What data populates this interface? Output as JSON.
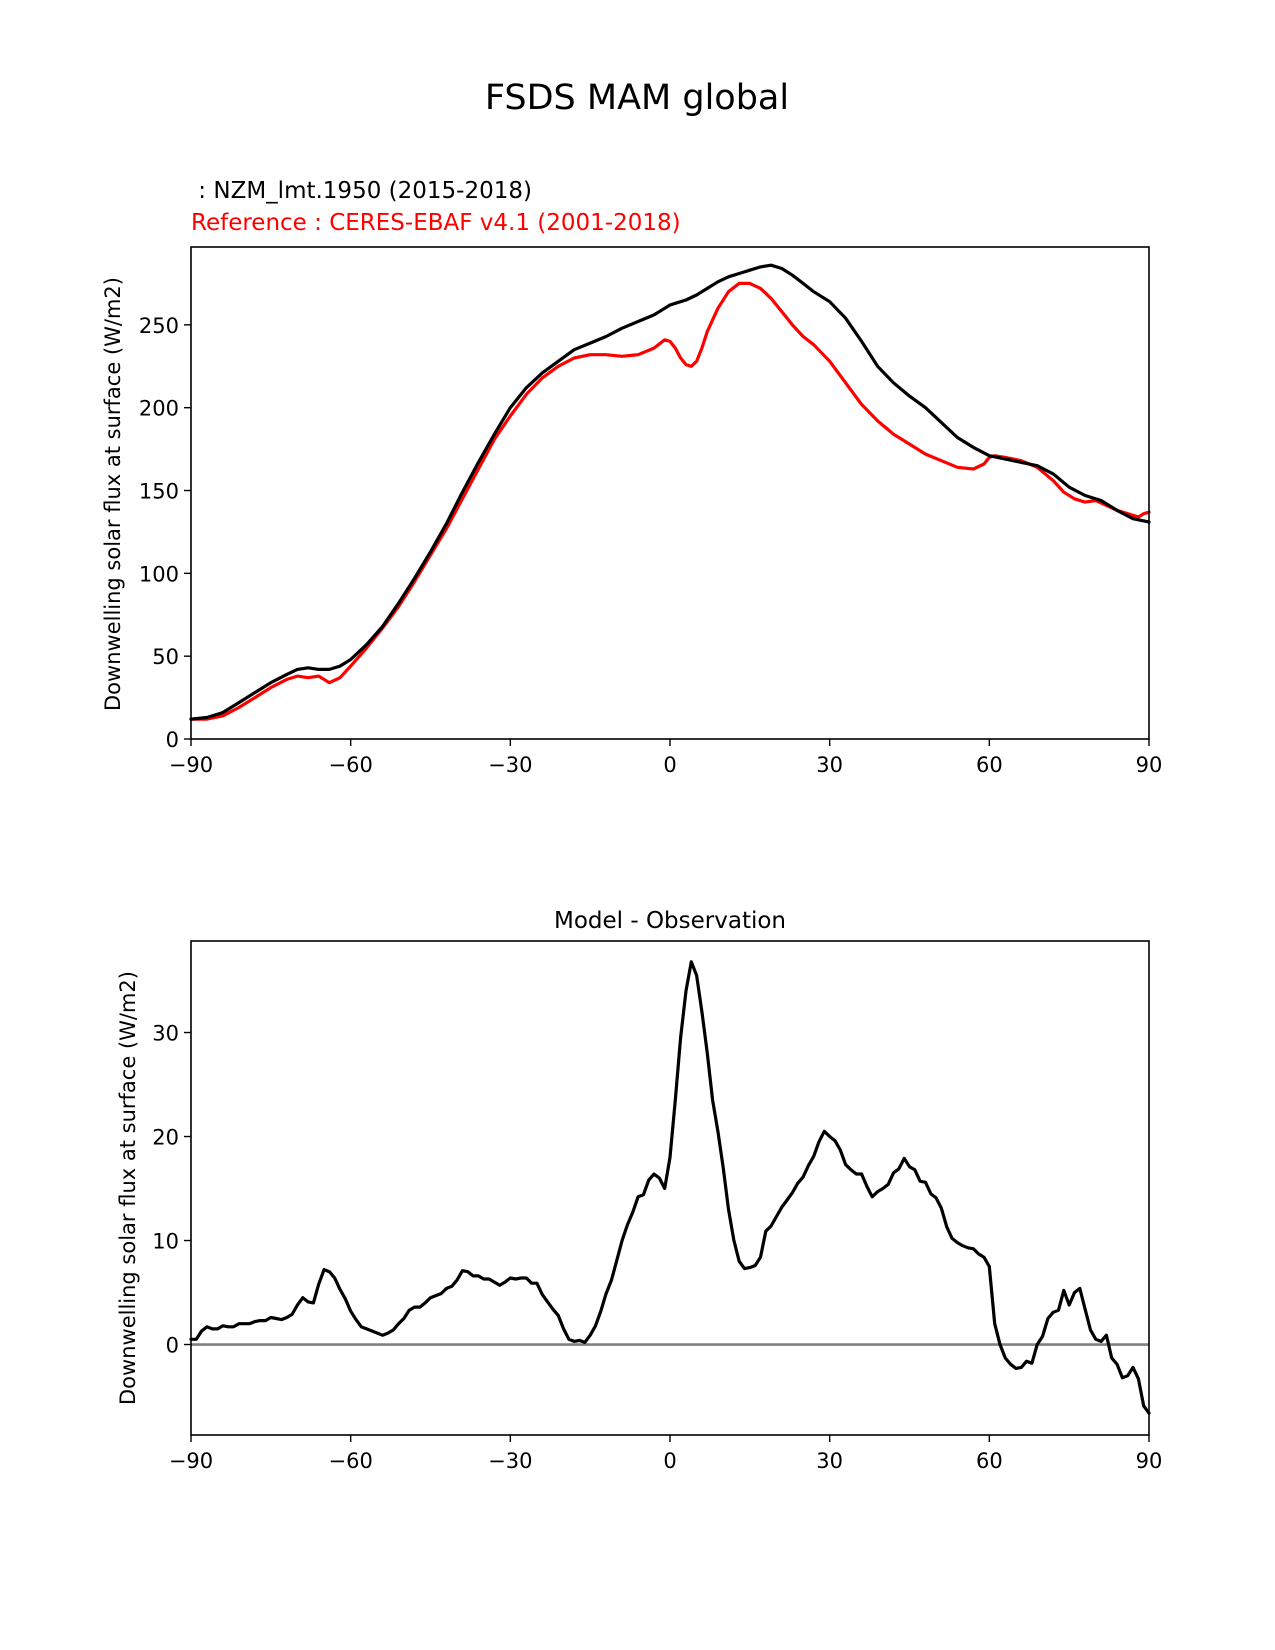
{
  "figure_title": "FSDS MAM global",
  "colors": {
    "model": "#000000",
    "reference": "#ff0000",
    "zero_line": "#808080"
  },
  "chart_data": [
    {
      "type": "line",
      "title": "",
      "legend": {
        "model_label": " : NZM_lmt.1950 (2015-2018)",
        "reference_label": "Reference : CERES-EBAF v4.1 (2001-2018)"
      },
      "xlabel": "",
      "ylabel": "Downwelling solar flux at surface (W/m2)",
      "xlim": [
        -90,
        90
      ],
      "ylim": [
        0,
        297
      ],
      "xticks": [
        -90,
        -60,
        -30,
        0,
        30,
        60,
        90
      ],
      "xtick_labels": [
        "−90",
        "−60",
        "−30",
        "0",
        "30",
        "60",
        "90"
      ],
      "yticks": [
        0,
        50,
        100,
        150,
        200,
        250
      ],
      "ytick_labels": [
        "0",
        "50",
        "100",
        "150",
        "200",
        "250"
      ],
      "series": [
        {
          "name": "model",
          "color": "#000000",
          "x": [
            -90,
            -87,
            -84,
            -81,
            -78,
            -75,
            -72,
            -70,
            -68,
            -66,
            -64,
            -62,
            -60,
            -57,
            -54,
            -51,
            -48,
            -45,
            -42,
            -39,
            -36,
            -33,
            -30,
            -27,
            -24,
            -21,
            -18,
            -15,
            -12,
            -9,
            -6,
            -3,
            -1,
            0,
            1,
            3,
            5,
            7,
            9,
            11,
            13,
            15,
            17,
            19,
            21,
            23,
            25,
            27,
            30,
            33,
            36,
            39,
            42,
            45,
            48,
            51,
            54,
            57,
            60,
            63,
            66,
            69,
            72,
            75,
            78,
            81,
            84,
            87,
            90
          ],
          "values": [
            12,
            13,
            16,
            22,
            28,
            34,
            39,
            42,
            43,
            42,
            42,
            44,
            48,
            57,
            68,
            82,
            97,
            113,
            130,
            149,
            167,
            184,
            200,
            212,
            221,
            228,
            235,
            239,
            243,
            248,
            252,
            256,
            260,
            262,
            263,
            265,
            268,
            272,
            276,
            279,
            281,
            283,
            285,
            286,
            284,
            280,
            275,
            270,
            264,
            254,
            240,
            225,
            215,
            207,
            200,
            191,
            182,
            176,
            171,
            169,
            167,
            165,
            160,
            152,
            147,
            144,
            138,
            133,
            131
          ]
        },
        {
          "name": "reference",
          "color": "#ff0000",
          "x": [
            -90,
            -87,
            -84,
            -81,
            -78,
            -75,
            -72,
            -70,
            -68,
            -66,
            -64,
            -62,
            -60,
            -57,
            -54,
            -51,
            -48,
            -45,
            -42,
            -39,
            -36,
            -33,
            -30,
            -27,
            -24,
            -21,
            -18,
            -15,
            -12,
            -9,
            -6,
            -3,
            -1,
            0,
            1,
            2,
            3,
            4,
            5,
            6,
            7,
            9,
            11,
            13,
            15,
            17,
            19,
            21,
            23,
            25,
            27,
            30,
            33,
            36,
            39,
            42,
            45,
            48,
            51,
            54,
            57,
            59,
            60,
            61,
            63,
            66,
            69,
            72,
            74,
            76,
            78,
            80,
            82,
            84,
            86,
            88,
            89,
            90
          ],
          "values": [
            12,
            12,
            14,
            19,
            25,
            31,
            36,
            38,
            37,
            38,
            34,
            37,
            44,
            55,
            67,
            80,
            95,
            111,
            127,
            145,
            163,
            181,
            195,
            208,
            218,
            225,
            230,
            232,
            232,
            231,
            232,
            236,
            241,
            240,
            236,
            230,
            226,
            225,
            228,
            236,
            246,
            260,
            270,
            275,
            275,
            272,
            266,
            258,
            250,
            243,
            238,
            228,
            215,
            202,
            192,
            184,
            178,
            172,
            168,
            164,
            163,
            166,
            170,
            171,
            170,
            168,
            164,
            156,
            149,
            145,
            143,
            144,
            141,
            138,
            136,
            134,
            136,
            137
          ]
        }
      ]
    },
    {
      "type": "line",
      "title": "Model - Observation",
      "xlabel": "",
      "ylabel": "Downwelling solar flux at surface (W/m2)",
      "xlim": [
        -90,
        90
      ],
      "ylim": [
        -8.7,
        38.8
      ],
      "xticks": [
        -90,
        -60,
        -30,
        0,
        30,
        60,
        90
      ],
      "xtick_labels": [
        "−90",
        "−60",
        "−30",
        "0",
        "30",
        "60",
        "90"
      ],
      "yticks": [
        0,
        10,
        20,
        30
      ],
      "ytick_labels": [
        "0",
        "10",
        "20",
        "30"
      ],
      "zero_line": 0,
      "series": [
        {
          "name": "difference",
          "color": "#000000",
          "x": [
            -90,
            -89,
            -88,
            -87,
            -86,
            -85,
            -84,
            -83,
            -82,
            -81,
            -80,
            -79,
            -78,
            -77,
            -76,
            -75,
            -74,
            -73,
            -72,
            -71,
            -70,
            -69,
            -68,
            -67,
            -66,
            -65,
            -64,
            -63,
            -62,
            -61,
            -60,
            -59,
            -58,
            -57,
            -56,
            -55,
            -54,
            -53,
            -52,
            -51,
            -50,
            -49,
            -48,
            -47,
            -46,
            -45,
            -44,
            -43,
            -42,
            -41,
            -40,
            -39,
            -38,
            -37,
            -36,
            -35,
            -34,
            -33,
            -32,
            -31,
            -30,
            -29,
            -28,
            -27,
            -26,
            -25,
            -24,
            -23,
            -22,
            -21,
            -20,
            -19,
            -18,
            -17,
            -16,
            -15,
            -14,
            -13,
            -12,
            -11,
            -10,
            -9,
            -8,
            -7,
            -6,
            -5,
            -4,
            -3,
            -2,
            -1,
            0,
            1,
            2,
            3,
            4,
            5,
            6,
            7,
            8,
            9,
            10,
            11,
            12,
            13,
            14,
            15,
            16,
            17,
            18,
            19,
            20,
            21,
            22,
            23,
            24,
            25,
            26,
            27,
            28,
            29,
            30,
            31,
            32,
            33,
            34,
            35,
            36,
            37,
            38,
            39,
            40,
            41,
            42,
            43,
            44,
            45,
            46,
            47,
            48,
            49,
            50,
            51,
            52,
            53,
            54,
            55,
            56,
            57,
            58,
            59,
            60,
            61,
            62,
            63,
            64,
            65,
            66,
            67,
            68,
            69,
            70,
            71,
            72,
            73,
            74,
            75,
            76,
            77,
            78,
            79,
            80,
            81,
            82,
            83,
            84,
            85,
            86,
            87,
            88,
            89,
            90
          ],
          "values": [
            0.5,
            0.5,
            1.3,
            1.7,
            1.5,
            1.5,
            1.8,
            1.7,
            1.7,
            2.0,
            2.0,
            2.0,
            2.2,
            2.3,
            2.3,
            2.6,
            2.5,
            2.4,
            2.6,
            2.9,
            3.8,
            4.5,
            4.1,
            4.0,
            5.8,
            7.2,
            7.0,
            6.4,
            5.3,
            4.4,
            3.2,
            2.4,
            1.7,
            1.5,
            1.3,
            1.1,
            0.9,
            1.1,
            1.4,
            2.0,
            2.5,
            3.3,
            3.6,
            3.6,
            4.0,
            4.5,
            4.7,
            4.9,
            5.4,
            5.6,
            6.2,
            7.1,
            7.0,
            6.6,
            6.6,
            6.3,
            6.3,
            6.0,
            5.7,
            6.0,
            6.4,
            6.3,
            6.4,
            6.4,
            5.9,
            5.9,
            4.8,
            4.1,
            3.4,
            2.8,
            1.5,
            0.5,
            0.3,
            0.4,
            0.2,
            0.9,
            1.8,
            3.2,
            4.9,
            6.2,
            8.1,
            10.0,
            11.5,
            12.7,
            14.2,
            14.4,
            15.8,
            16.4,
            16.0,
            15.0,
            18.0,
            23.5,
            29.5,
            34.0,
            36.8,
            35.5,
            32.0,
            28.0,
            23.5,
            20.5,
            17.0,
            13.0,
            10.0,
            8.0,
            7.3,
            7.4,
            7.6,
            8.4,
            10.9,
            11.4,
            12.3,
            13.2,
            13.9,
            14.6,
            15.5,
            16.1,
            17.2,
            18.1,
            19.5,
            20.5,
            20.0,
            19.6,
            18.7,
            17.3,
            16.8,
            16.4,
            16.4,
            15.2,
            14.2,
            14.7,
            15.0,
            15.4,
            16.5,
            16.9,
            17.9,
            17.1,
            16.8,
            15.7,
            15.6,
            14.5,
            14.1,
            13.1,
            11.3,
            10.2,
            9.8,
            9.5,
            9.3,
            9.2,
            8.7,
            8.4,
            7.5,
            2.0,
            0.0,
            -1.3,
            -1.9,
            -2.3,
            -2.2,
            -1.6,
            -1.8,
            0.0,
            0.8,
            2.5,
            3.1,
            3.3,
            5.2,
            3.8,
            5.0,
            5.4,
            3.4,
            1.4,
            0.5,
            0.3,
            0.9,
            -1.3,
            -1.9,
            -3.2,
            -3.0,
            -2.2,
            -3.3,
            -5.9,
            -6.6
          ]
        }
      ]
    }
  ]
}
